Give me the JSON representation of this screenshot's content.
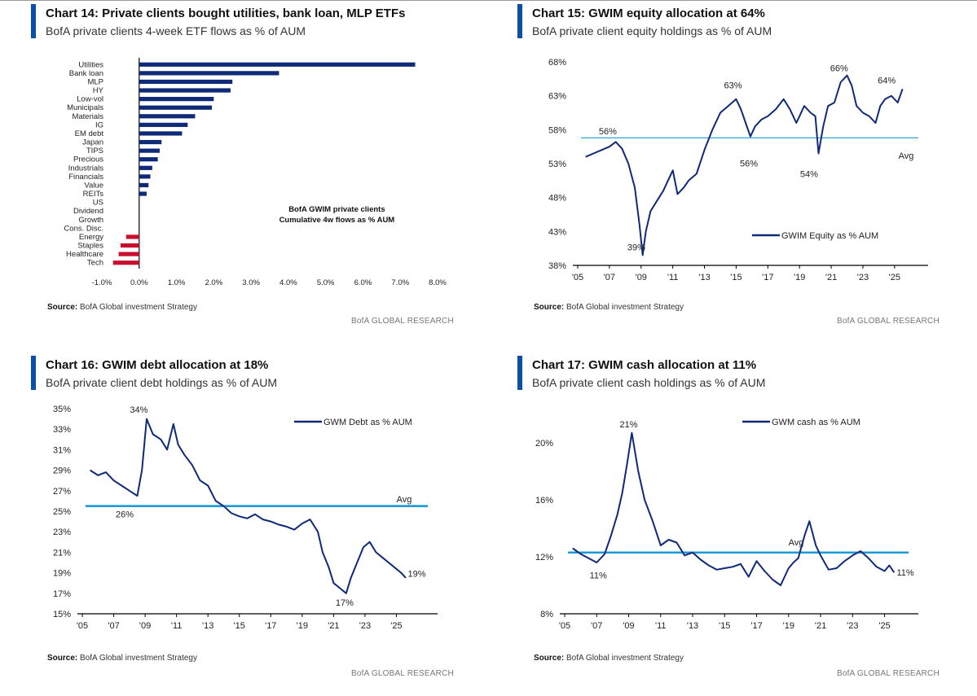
{
  "brand_label": "BofA GLOBAL RESEARCH",
  "source_label": "Source:",
  "source_text": "BofA Global investment Strategy",
  "colors": {
    "accent": "#0a4fa8",
    "series": "#0f2a78",
    "avg": "#1a9ad6",
    "negative": "#c8102e"
  },
  "charts": [
    {
      "title": "Chart 14: Private clients bought utilities, bank loan, MLP ETFs",
      "subtitle": "BofA private clients 4-week ETF flows as % of AUM",
      "chart_data": {
        "type": "bar",
        "orientation": "horizontal",
        "categories": [
          "Utilities",
          "Bank loan",
          "MLP",
          "HY",
          "Low-vol",
          "Municipals",
          "Materials",
          "IG",
          "EM debt",
          "Japan",
          "TIPS",
          "Precious",
          "Industrials",
          "Financials",
          "Value",
          "REITs",
          "US",
          "Dividend",
          "Growth",
          "Cons. Disc.",
          "Energy",
          "Staples",
          "Healthcare",
          "Tech"
        ],
        "values": [
          7.4,
          3.75,
          2.5,
          2.45,
          2.0,
          1.95,
          1.5,
          1.3,
          1.15,
          0.6,
          0.55,
          0.5,
          0.35,
          0.3,
          0.25,
          0.2,
          0.0,
          0.0,
          0.0,
          0.0,
          -0.35,
          -0.5,
          -0.55,
          -0.7
        ],
        "xlim": [
          -1.0,
          8.0
        ],
        "xticks": [
          "-1.0%",
          "0.0%",
          "1.0%",
          "2.0%",
          "3.0%",
          "4.0%",
          "5.0%",
          "6.0%",
          "7.0%",
          "8.0%"
        ],
        "xtick_values": [
          -1,
          0,
          1,
          2,
          3,
          4,
          5,
          6,
          7,
          8
        ],
        "annotation_lines": [
          "BofA GWIM private clients",
          "Cumulative 4w flows as % AUM"
        ]
      }
    },
    {
      "title": "Chart 15: GWIM equity allocation at 64%",
      "subtitle": "BofA private client equity holdings as % of AUM",
      "chart_data": {
        "type": "line",
        "legend": "GWIM Equity as % AUM",
        "ylim": [
          38,
          68
        ],
        "yticks": [
          "38%",
          "43%",
          "48%",
          "53%",
          "58%",
          "63%",
          "68%"
        ],
        "ytick_values": [
          38,
          43,
          48,
          53,
          58,
          63,
          68
        ],
        "xlim": [
          2005,
          2026.5
        ],
        "xticks": [
          "'05",
          "'07",
          "'09",
          "'11",
          "'13",
          "'15",
          "'17",
          "'19",
          "'21",
          "'23",
          "'25"
        ],
        "xtick_values": [
          2005,
          2007,
          2009,
          2011,
          2013,
          2015,
          2017,
          2019,
          2021,
          2023,
          2025
        ],
        "avg_value": 56.8,
        "avg_label": "Avg",
        "x": [
          2005.5,
          2006.0,
          2006.5,
          2007.0,
          2007.4,
          2007.8,
          2008.2,
          2008.6,
          2008.9,
          2009.1,
          2009.3,
          2009.6,
          2010.0,
          2010.4,
          2010.7,
          2011.0,
          2011.3,
          2011.7,
          2012.0,
          2012.5,
          2013.0,
          2013.5,
          2014.0,
          2014.5,
          2015.0,
          2015.3,
          2015.6,
          2015.9,
          2016.2,
          2016.6,
          2017.0,
          2017.5,
          2018.0,
          2018.4,
          2018.8,
          2019.0,
          2019.3,
          2019.7,
          2020.0,
          2020.2,
          2020.5,
          2020.8,
          2021.2,
          2021.6,
          2022.0,
          2022.3,
          2022.6,
          2023.0,
          2023.4,
          2023.8,
          2024.1,
          2024.4,
          2024.8,
          2025.2,
          2025.5
        ],
        "values": [
          54.0,
          54.5,
          55.0,
          55.5,
          56.2,
          55.2,
          53.0,
          49.5,
          44.0,
          39.5,
          43.0,
          46.0,
          47.5,
          49.0,
          50.5,
          52.0,
          48.5,
          49.5,
          50.5,
          51.5,
          55.0,
          58.0,
          60.5,
          61.5,
          62.5,
          61.0,
          59.0,
          57.0,
          58.5,
          59.5,
          60.0,
          61.0,
          62.5,
          61.0,
          59.0,
          60.0,
          61.5,
          60.5,
          60.0,
          54.5,
          58.5,
          61.5,
          62.0,
          65.0,
          66.0,
          64.5,
          61.5,
          60.5,
          60.0,
          59.0,
          61.5,
          62.5,
          63.0,
          62.0,
          64.0
        ],
        "point_labels": [
          {
            "x": 2008.7,
            "y": 40.2,
            "text": "39%"
          },
          {
            "x": 2014.8,
            "y": 64.1,
            "text": "63%"
          },
          {
            "x": 2006.9,
            "y": 57.3,
            "text": "56%"
          },
          {
            "x": 2015.8,
            "y": 52.6,
            "text": "56%"
          },
          {
            "x": 2019.6,
            "y": 51.0,
            "text": "54%"
          },
          {
            "x": 2021.5,
            "y": 66.6,
            "text": "66%"
          },
          {
            "x": 2024.5,
            "y": 64.8,
            "text": "64%"
          }
        ]
      }
    },
    {
      "title": "Chart 16: GWIM debt allocation at 18%",
      "subtitle": "BofA private client debt holdings as % of AUM",
      "chart_data": {
        "type": "line",
        "legend": "GWM Debt as % AUM",
        "ylim": [
          15,
          35
        ],
        "yticks": [
          "15%",
          "17%",
          "19%",
          "21%",
          "23%",
          "25%",
          "27%",
          "29%",
          "31%",
          "33%",
          "35%"
        ],
        "ytick_values": [
          15,
          17,
          19,
          21,
          23,
          25,
          27,
          29,
          31,
          33,
          35
        ],
        "xlim": [
          2005,
          2027
        ],
        "xticks": [
          "'05",
          "'07",
          "'09",
          "'11",
          "'13",
          "'15",
          "'17",
          "'19",
          "'21",
          "'23",
          "'25"
        ],
        "xtick_values": [
          2005,
          2007,
          2009,
          2011,
          2013,
          2015,
          2017,
          2019,
          2021,
          2023,
          2025
        ],
        "avg_value": 25.5,
        "avg_label": "Avg",
        "x": [
          2005.5,
          2006.0,
          2006.5,
          2007.0,
          2007.5,
          2008.0,
          2008.5,
          2008.8,
          2009.1,
          2009.5,
          2010.0,
          2010.4,
          2010.8,
          2011.1,
          2011.5,
          2012.0,
          2012.5,
          2013.0,
          2013.5,
          2014.0,
          2014.5,
          2015.0,
          2015.5,
          2016.0,
          2016.5,
          2017.0,
          2017.5,
          2018.0,
          2018.5,
          2019.0,
          2019.5,
          2020.0,
          2020.3,
          2020.7,
          2021.0,
          2021.4,
          2021.8,
          2022.1,
          2022.5,
          2022.9,
          2023.3,
          2023.7,
          2024.1,
          2024.5,
          2024.9,
          2025.3,
          2025.6
        ],
        "values": [
          29.0,
          28.5,
          28.8,
          28.0,
          27.5,
          27.0,
          26.5,
          29.0,
          34.0,
          32.5,
          32.0,
          31.0,
          33.5,
          31.5,
          30.5,
          29.5,
          28.0,
          27.5,
          26.0,
          25.5,
          24.8,
          24.5,
          24.3,
          24.7,
          24.2,
          24.0,
          23.7,
          23.5,
          23.2,
          23.8,
          24.2,
          23.0,
          21.0,
          19.5,
          18.0,
          17.5,
          17.0,
          18.5,
          20.0,
          21.5,
          22.0,
          21.0,
          20.5,
          20.0,
          19.5,
          19.0,
          18.5
        ],
        "point_labels": [
          {
            "x": 2008.6,
            "y": 34.6,
            "text": "34%"
          },
          {
            "x": 2007.7,
            "y": 24.4,
            "text": "26%"
          },
          {
            "x": 2021.7,
            "y": 15.8,
            "text": "17%"
          },
          {
            "x": 2026.3,
            "y": 18.6,
            "text": "19%"
          }
        ]
      }
    },
    {
      "title": "Chart 17: GWIM cash allocation at 11%",
      "subtitle": "BofA private client cash holdings as % of AUM",
      "chart_data": {
        "type": "line",
        "legend": "GWM cash as % AUM",
        "ylim": [
          8,
          22
        ],
        "yticks": [
          "8%",
          "12%",
          "16%",
          "20%"
        ],
        "ytick_values": [
          8,
          12,
          16,
          20
        ],
        "xlim": [
          2005,
          2026.5
        ],
        "xticks": [
          "'05",
          "'07",
          "'09",
          "'11",
          "'13",
          "'15",
          "'17",
          "'19",
          "'21",
          "'23",
          "'25"
        ],
        "xtick_values": [
          2005,
          2007,
          2009,
          2011,
          2013,
          2015,
          2017,
          2019,
          2021,
          2023,
          2025
        ],
        "avg_value": 12.3,
        "avg_label": "Avg",
        "x": [
          2005.5,
          2006.0,
          2006.5,
          2007.0,
          2007.5,
          2007.9,
          2008.3,
          2008.6,
          2008.9,
          2009.2,
          2009.6,
          2010.0,
          2010.5,
          2011.0,
          2011.5,
          2012.0,
          2012.5,
          2013.0,
          2013.5,
          2014.0,
          2014.5,
          2015.0,
          2015.5,
          2016.0,
          2016.5,
          2017.0,
          2017.5,
          2018.0,
          2018.5,
          2019.0,
          2019.3,
          2019.6,
          2020.0,
          2020.3,
          2020.7,
          2021.0,
          2021.5,
          2022.0,
          2022.5,
          2023.0,
          2023.5,
          2024.0,
          2024.5,
          2025.0,
          2025.3,
          2025.6
        ],
        "values": [
          12.6,
          12.2,
          11.9,
          11.6,
          12.2,
          13.5,
          15.0,
          16.5,
          18.5,
          20.7,
          18.0,
          16.0,
          14.5,
          12.8,
          13.2,
          13.0,
          12.1,
          12.3,
          11.8,
          11.4,
          11.1,
          11.2,
          11.3,
          11.5,
          10.6,
          11.7,
          11.0,
          10.4,
          10.0,
          11.2,
          11.6,
          11.9,
          13.5,
          14.5,
          12.8,
          12.1,
          11.1,
          11.2,
          11.7,
          12.1,
          12.4,
          11.9,
          11.3,
          11.0,
          11.4,
          10.9
        ],
        "point_labels": [
          {
            "x": 2009.0,
            "y": 21.1,
            "text": "21%"
          },
          {
            "x": 2007.1,
            "y": 10.5,
            "text": "11%"
          },
          {
            "x": 2026.3,
            "y": 10.7,
            "text": "11%"
          }
        ]
      }
    }
  ]
}
